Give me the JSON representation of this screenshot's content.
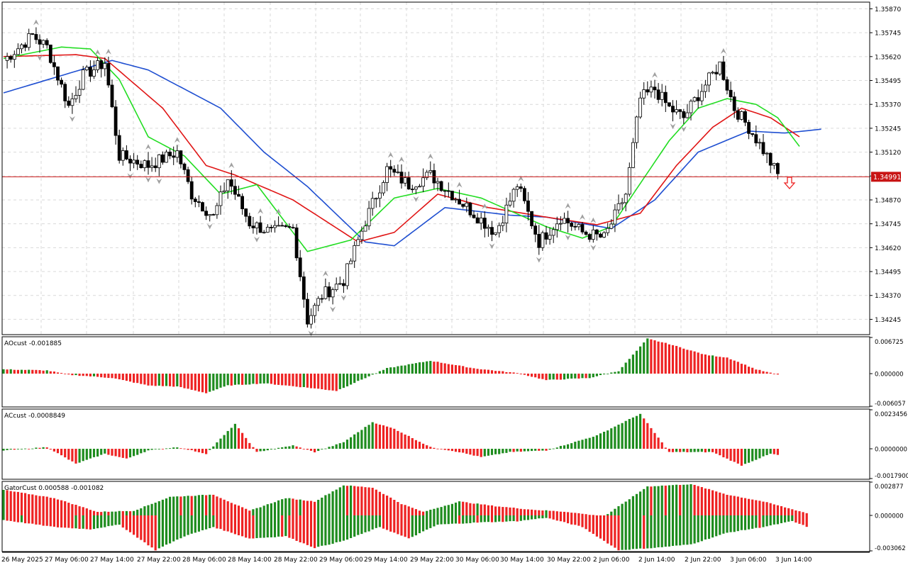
{
  "colors": {
    "background": "#ffffff",
    "frame": "#000000",
    "grid": "#d9d9d9",
    "bull_candle": "#ffffff",
    "bear_candle": "#000000",
    "jaw": "#1f4fd1",
    "teeth": "#e01515",
    "lips": "#22dd22",
    "fractal": "#a0a0a0",
    "bid_line": "#c81414",
    "bid_label_bg": "#c81414",
    "bid_label_text": "#ffffff",
    "hist_up": "#1e8c1e",
    "hist_down": "#ee2222",
    "sell_arrow": "#ee2222"
  },
  "price_panel": {
    "y_ticks": [
      "1.35870",
      "1.35745",
      "1.35620",
      "1.35495",
      "1.35370",
      "1.35245",
      "1.35120",
      "1.34995",
      "1.34870",
      "1.34745",
      "1.34620",
      "1.34495",
      "1.34370",
      "1.34245"
    ],
    "y_range": [
      1.34165,
      1.35905
    ],
    "bid_label": "1.34991",
    "signal": "sell-arrow-icon"
  },
  "time_axis": {
    "labels": [
      "26 May 2025",
      "27 May 06:00",
      "27 May 14:00",
      "27 May 22:00",
      "28 May 06:00",
      "28 May 14:00",
      "28 May 22:00",
      "29 May 06:00",
      "29 May 14:00",
      "29 May 22:00",
      "30 May 06:00",
      "30 May 14:00",
      "30 May 22:00",
      "2 Jun 06:00",
      "2 Jun 14:00",
      "2 Jun 22:00",
      "3 Jun 06:00",
      "3 Jun 14:00"
    ]
  },
  "ao_panel": {
    "label": "AOcust -0.001885",
    "y_ticks": [
      "0.006725",
      "0.000000",
      "-0.006057"
    ],
    "y_range": [
      -0.006057,
      0.006725
    ]
  },
  "ac_panel": {
    "label": "ACcust -0.0008849",
    "y_ticks": [
      "0.0023456",
      "0.0000000",
      "-0.0017900"
    ],
    "y_range": [
      -0.00179,
      0.0023456
    ]
  },
  "gator_panel": {
    "label": "GatorCust 0.000588 -0.001082",
    "y_ticks": [
      "0.002877",
      "0.000000",
      "-0.003062"
    ],
    "y_range": [
      -0.003062,
      0.002877
    ]
  },
  "chart_data": {
    "type": "candlestick",
    "symbol_timeframe": "",
    "price_anchors": [
      [
        0,
        1.356
      ],
      [
        8,
        1.3573
      ],
      [
        12,
        1.3567
      ],
      [
        18,
        1.3536
      ],
      [
        22,
        1.3552
      ],
      [
        28,
        1.3559
      ],
      [
        32,
        1.351
      ],
      [
        40,
        1.3505
      ],
      [
        48,
        1.3512
      ],
      [
        52,
        1.349
      ],
      [
        58,
        1.3478
      ],
      [
        62,
        1.3498
      ],
      [
        68,
        1.3475
      ],
      [
        74,
        1.347
      ],
      [
        80,
        1.3472
      ],
      [
        84,
        1.3424
      ],
      [
        88,
        1.3437
      ],
      [
        94,
        1.3445
      ],
      [
        100,
        1.3476
      ],
      [
        106,
        1.3503
      ],
      [
        112,
        1.3495
      ],
      [
        118,
        1.35
      ],
      [
        124,
        1.349
      ],
      [
        130,
        1.348
      ],
      [
        136,
        1.347
      ],
      [
        142,
        1.3495
      ],
      [
        148,
        1.3465
      ],
      [
        154,
        1.3478
      ],
      [
        160,
        1.347
      ],
      [
        166,
        1.3467
      ],
      [
        172,
        1.349
      ],
      [
        176,
        1.354
      ],
      [
        180,
        1.3545
      ],
      [
        184,
        1.3535
      ],
      [
        188,
        1.353
      ],
      [
        192,
        1.3542
      ],
      [
        198,
        1.3558
      ],
      [
        202,
        1.3535
      ],
      [
        206,
        1.3525
      ],
      [
        210,
        1.3513
      ],
      [
        214,
        1.35
      ]
    ],
    "indicators": {
      "jaw": [
        [
          0,
          1.3543
        ],
        [
          30,
          1.356
        ],
        [
          40,
          1.3555
        ],
        [
          60,
          1.3535
        ],
        [
          72,
          1.3512
        ],
        [
          84,
          1.3494
        ],
        [
          100,
          1.3465
        ],
        [
          108,
          1.3463
        ],
        [
          122,
          1.3483
        ],
        [
          140,
          1.3479
        ],
        [
          150,
          1.3478
        ],
        [
          168,
          1.3472
        ],
        [
          180,
          1.3487
        ],
        [
          192,
          1.3512
        ],
        [
          206,
          1.3523
        ],
        [
          216,
          1.3522
        ],
        [
          226,
          1.3524
        ]
      ],
      "teeth": [
        [
          0,
          1.3562
        ],
        [
          20,
          1.3563
        ],
        [
          28,
          1.3561
        ],
        [
          44,
          1.3535
        ],
        [
          56,
          1.3505
        ],
        [
          64,
          1.35
        ],
        [
          80,
          1.3487
        ],
        [
          98,
          1.3465
        ],
        [
          108,
          1.347
        ],
        [
          120,
          1.349
        ],
        [
          134,
          1.3483
        ],
        [
          150,
          1.3478
        ],
        [
          164,
          1.3474
        ],
        [
          176,
          1.348
        ],
        [
          186,
          1.3505
        ],
        [
          196,
          1.3525
        ],
        [
          204,
          1.3535
        ],
        [
          212,
          1.353
        ],
        [
          220,
          1.352
        ]
      ],
      "lips": [
        [
          0,
          1.3561
        ],
        [
          16,
          1.3567
        ],
        [
          24,
          1.3566
        ],
        [
          32,
          1.355
        ],
        [
          40,
          1.352
        ],
        [
          50,
          1.351
        ],
        [
          60,
          1.349
        ],
        [
          70,
          1.3495
        ],
        [
          84,
          1.346
        ],
        [
          96,
          1.3466
        ],
        [
          108,
          1.3488
        ],
        [
          120,
          1.3493
        ],
        [
          132,
          1.3488
        ],
        [
          150,
          1.3473
        ],
        [
          160,
          1.3467
        ],
        [
          168,
          1.3473
        ],
        [
          174,
          1.349
        ],
        [
          184,
          1.3518
        ],
        [
          192,
          1.3535
        ],
        [
          200,
          1.354
        ],
        [
          208,
          1.3537
        ],
        [
          214,
          1.353
        ],
        [
          220,
          1.3515
        ]
      ]
    },
    "oscillators": {
      "ao_anchors": [
        [
          0,
          0.0008
        ],
        [
          12,
          0.0006
        ],
        [
          18,
          -0.0002
        ],
        [
          30,
          -0.0008
        ],
        [
          40,
          -0.0022
        ],
        [
          48,
          -0.0024
        ],
        [
          56,
          -0.0036
        ],
        [
          62,
          -0.0022
        ],
        [
          72,
          -0.0018
        ],
        [
          84,
          -0.0026
        ],
        [
          92,
          -0.0032
        ],
        [
          100,
          -0.0008
        ],
        [
          106,
          0.001
        ],
        [
          118,
          0.0024
        ],
        [
          130,
          0.001
        ],
        [
          142,
          0.0001
        ],
        [
          150,
          -0.0012
        ],
        [
          162,
          -0.0008
        ],
        [
          170,
          0.0005
        ],
        [
          178,
          0.0065
        ],
        [
          184,
          0.0055
        ],
        [
          194,
          0.0035
        ],
        [
          200,
          0.003
        ],
        [
          208,
          0.0008
        ],
        [
          214,
          -0.0002
        ],
        [
          220,
          -0.0019
        ]
      ],
      "ac_anchors": [
        [
          0,
          -0.0001
        ],
        [
          12,
          0.0001
        ],
        [
          20,
          -0.0009
        ],
        [
          28,
          -0.0003
        ],
        [
          34,
          -0.0006
        ],
        [
          40,
          -0.0001
        ],
        [
          48,
          0.0001
        ],
        [
          56,
          -0.0003
        ],
        [
          64,
          0.0015
        ],
        [
          70,
          -0.0002
        ],
        [
          80,
          0.0002
        ],
        [
          86,
          -0.0002
        ],
        [
          94,
          0.0004
        ],
        [
          102,
          0.0016
        ],
        [
          108,
          0.0012
        ],
        [
          118,
          0.0001
        ],
        [
          126,
          -0.0002
        ],
        [
          132,
          -0.0005
        ],
        [
          140,
          -0.0002
        ],
        [
          150,
          -0.0001
        ],
        [
          164,
          0.0008
        ],
        [
          176,
          0.0021
        ],
        [
          184,
          -0.0002
        ],
        [
          196,
          -0.0002
        ],
        [
          204,
          -0.001
        ],
        [
          212,
          -0.0003
        ],
        [
          220,
          -0.0006
        ]
      ],
      "gator_upper_anchors": [
        [
          0,
          0.0022
        ],
        [
          14,
          0.0015
        ],
        [
          26,
          0.0003
        ],
        [
          36,
          0.0004
        ],
        [
          46,
          0.0016
        ],
        [
          58,
          0.0018
        ],
        [
          68,
          0.0004
        ],
        [
          78,
          0.0015
        ],
        [
          86,
          0.0012
        ],
        [
          94,
          0.0026
        ],
        [
          102,
          0.0024
        ],
        [
          110,
          0.001
        ],
        [
          116,
          0.0003
        ],
        [
          126,
          0.0012
        ],
        [
          136,
          0.0008
        ],
        [
          146,
          0.0005
        ],
        [
          156,
          0.0003
        ],
        [
          166,
          -0.0001
        ],
        [
          178,
          0.0025
        ],
        [
          190,
          0.0027
        ],
        [
          200,
          0.0018
        ],
        [
          210,
          0.0012
        ],
        [
          222,
          0.0002
        ],
        [
          228,
          0.0008
        ]
      ],
      "gator_lower_anchors": [
        [
          0,
          -0.0004
        ],
        [
          14,
          -0.001
        ],
        [
          24,
          -0.0012
        ],
        [
          32,
          -0.0008
        ],
        [
          42,
          -0.003
        ],
        [
          50,
          -0.0018
        ],
        [
          58,
          -0.001
        ],
        [
          68,
          -0.002
        ],
        [
          78,
          -0.0018
        ],
        [
          86,
          -0.0028
        ],
        [
          94,
          -0.0022
        ],
        [
          104,
          -0.001
        ],
        [
          112,
          -0.002
        ],
        [
          120,
          -0.0008
        ],
        [
          132,
          -0.0006
        ],
        [
          142,
          -0.0005
        ],
        [
          150,
          -0.0002
        ],
        [
          160,
          -0.001
        ],
        [
          170,
          -0.003
        ],
        [
          180,
          -0.0028
        ],
        [
          190,
          -0.0025
        ],
        [
          200,
          -0.0015
        ],
        [
          210,
          -0.001
        ],
        [
          218,
          -0.0005
        ],
        [
          224,
          -0.0012
        ]
      ]
    }
  }
}
